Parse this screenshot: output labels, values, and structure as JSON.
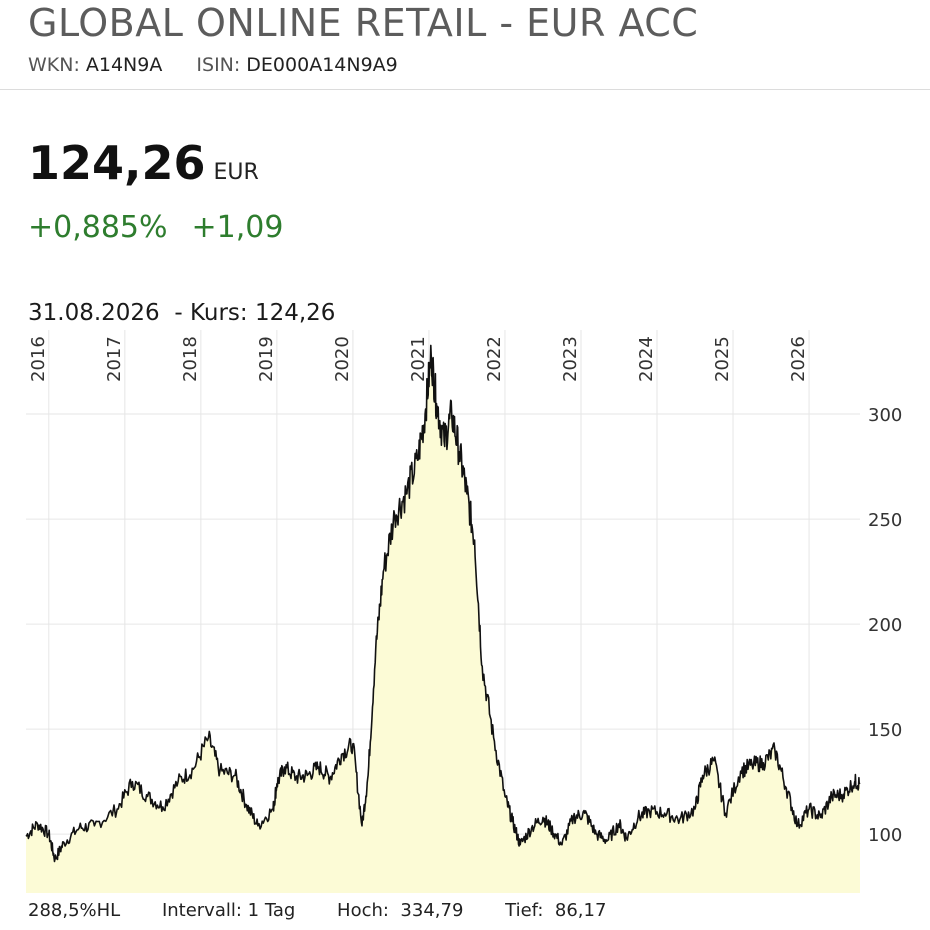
{
  "header": {
    "title": "GLOBAL ONLINE RETAIL - EUR ACC",
    "wkn_label": "WKN:",
    "wkn": "A14N9A",
    "isin_label": "ISIN:",
    "isin": "DE000A14N9A9"
  },
  "quote": {
    "price": "124,26",
    "currency": "EUR",
    "change_pct": "+0,885%",
    "change_abs": "+1,09",
    "positive_color": "#2e7d2e"
  },
  "info": {
    "date": "31.08.2026",
    "kurs": "- Kurs: 124,26"
  },
  "footer": {
    "range": "288,5%HL",
    "interval": "Intervall: 1 Tag",
    "high_label": "Hoch:",
    "high": "334,79",
    "low_label": "Tief:",
    "low": "86,17"
  },
  "chart_data": {
    "type": "area",
    "line_color": "#111111",
    "fill_color": "#fcfbd6",
    "grid": true,
    "y_axis_position": "right",
    "x_tick_labels": [
      "2016",
      "2017",
      "2018",
      "2019",
      "2020",
      "2021",
      "2022",
      "2023",
      "2024",
      "2025",
      "2026"
    ],
    "x_ticks_years": [
      2016,
      2017,
      2018,
      2019,
      2020,
      2021,
      2022,
      2023,
      2024,
      2025,
      2026
    ],
    "y_ticks": [
      100,
      150,
      200,
      250,
      300
    ],
    "xlim": [
      2015.7,
      2026.67
    ],
    "ylim": [
      72,
      340
    ],
    "x": [
      2015.7,
      2015.85,
      2016.0,
      2016.08,
      2016.2,
      2016.4,
      2016.6,
      2016.9,
      2017.1,
      2017.3,
      2017.5,
      2017.7,
      2017.9,
      2018.1,
      2018.25,
      2018.45,
      2018.6,
      2018.75,
      2018.95,
      2019.0,
      2019.1,
      2019.25,
      2019.4,
      2019.55,
      2019.7,
      2019.85,
      2020.0,
      2020.12,
      2020.2,
      2020.3,
      2020.4,
      2020.55,
      2020.7,
      2020.85,
      2020.95,
      2021.03,
      2021.1,
      2021.2,
      2021.3,
      2021.4,
      2021.5,
      2021.6,
      2021.7,
      2021.85,
      2022.0,
      2022.1,
      2022.2,
      2022.35,
      2022.5,
      2022.6,
      2022.75,
      2022.9,
      2023.05,
      2023.2,
      2023.35,
      2023.5,
      2023.6,
      2023.75,
      2023.9,
      2024.1,
      2024.3,
      2024.5,
      2024.6,
      2024.75,
      2024.9,
      2025.1,
      2025.25,
      2025.4,
      2025.55,
      2025.7,
      2025.85,
      2026.0,
      2026.15,
      2026.3,
      2026.45,
      2026.6,
      2026.67
    ],
    "y": [
      99,
      105,
      100,
      88,
      96,
      103,
      104,
      112,
      125,
      118,
      113,
      125,
      131,
      146,
      130,
      128,
      114,
      104,
      112,
      124,
      132,
      127,
      128,
      132,
      127,
      138,
      143,
      104,
      128,
      188,
      225,
      252,
      262,
      278,
      300,
      328,
      305,
      287,
      300,
      282,
      262,
      240,
      180,
      146,
      118,
      106,
      95,
      103,
      108,
      103,
      95,
      108,
      110,
      100,
      97,
      105,
      98,
      108,
      111,
      110,
      107,
      112,
      128,
      135,
      110,
      130,
      133,
      134,
      140,
      122,
      104,
      112,
      108,
      118,
      119,
      125,
      124
    ]
  }
}
